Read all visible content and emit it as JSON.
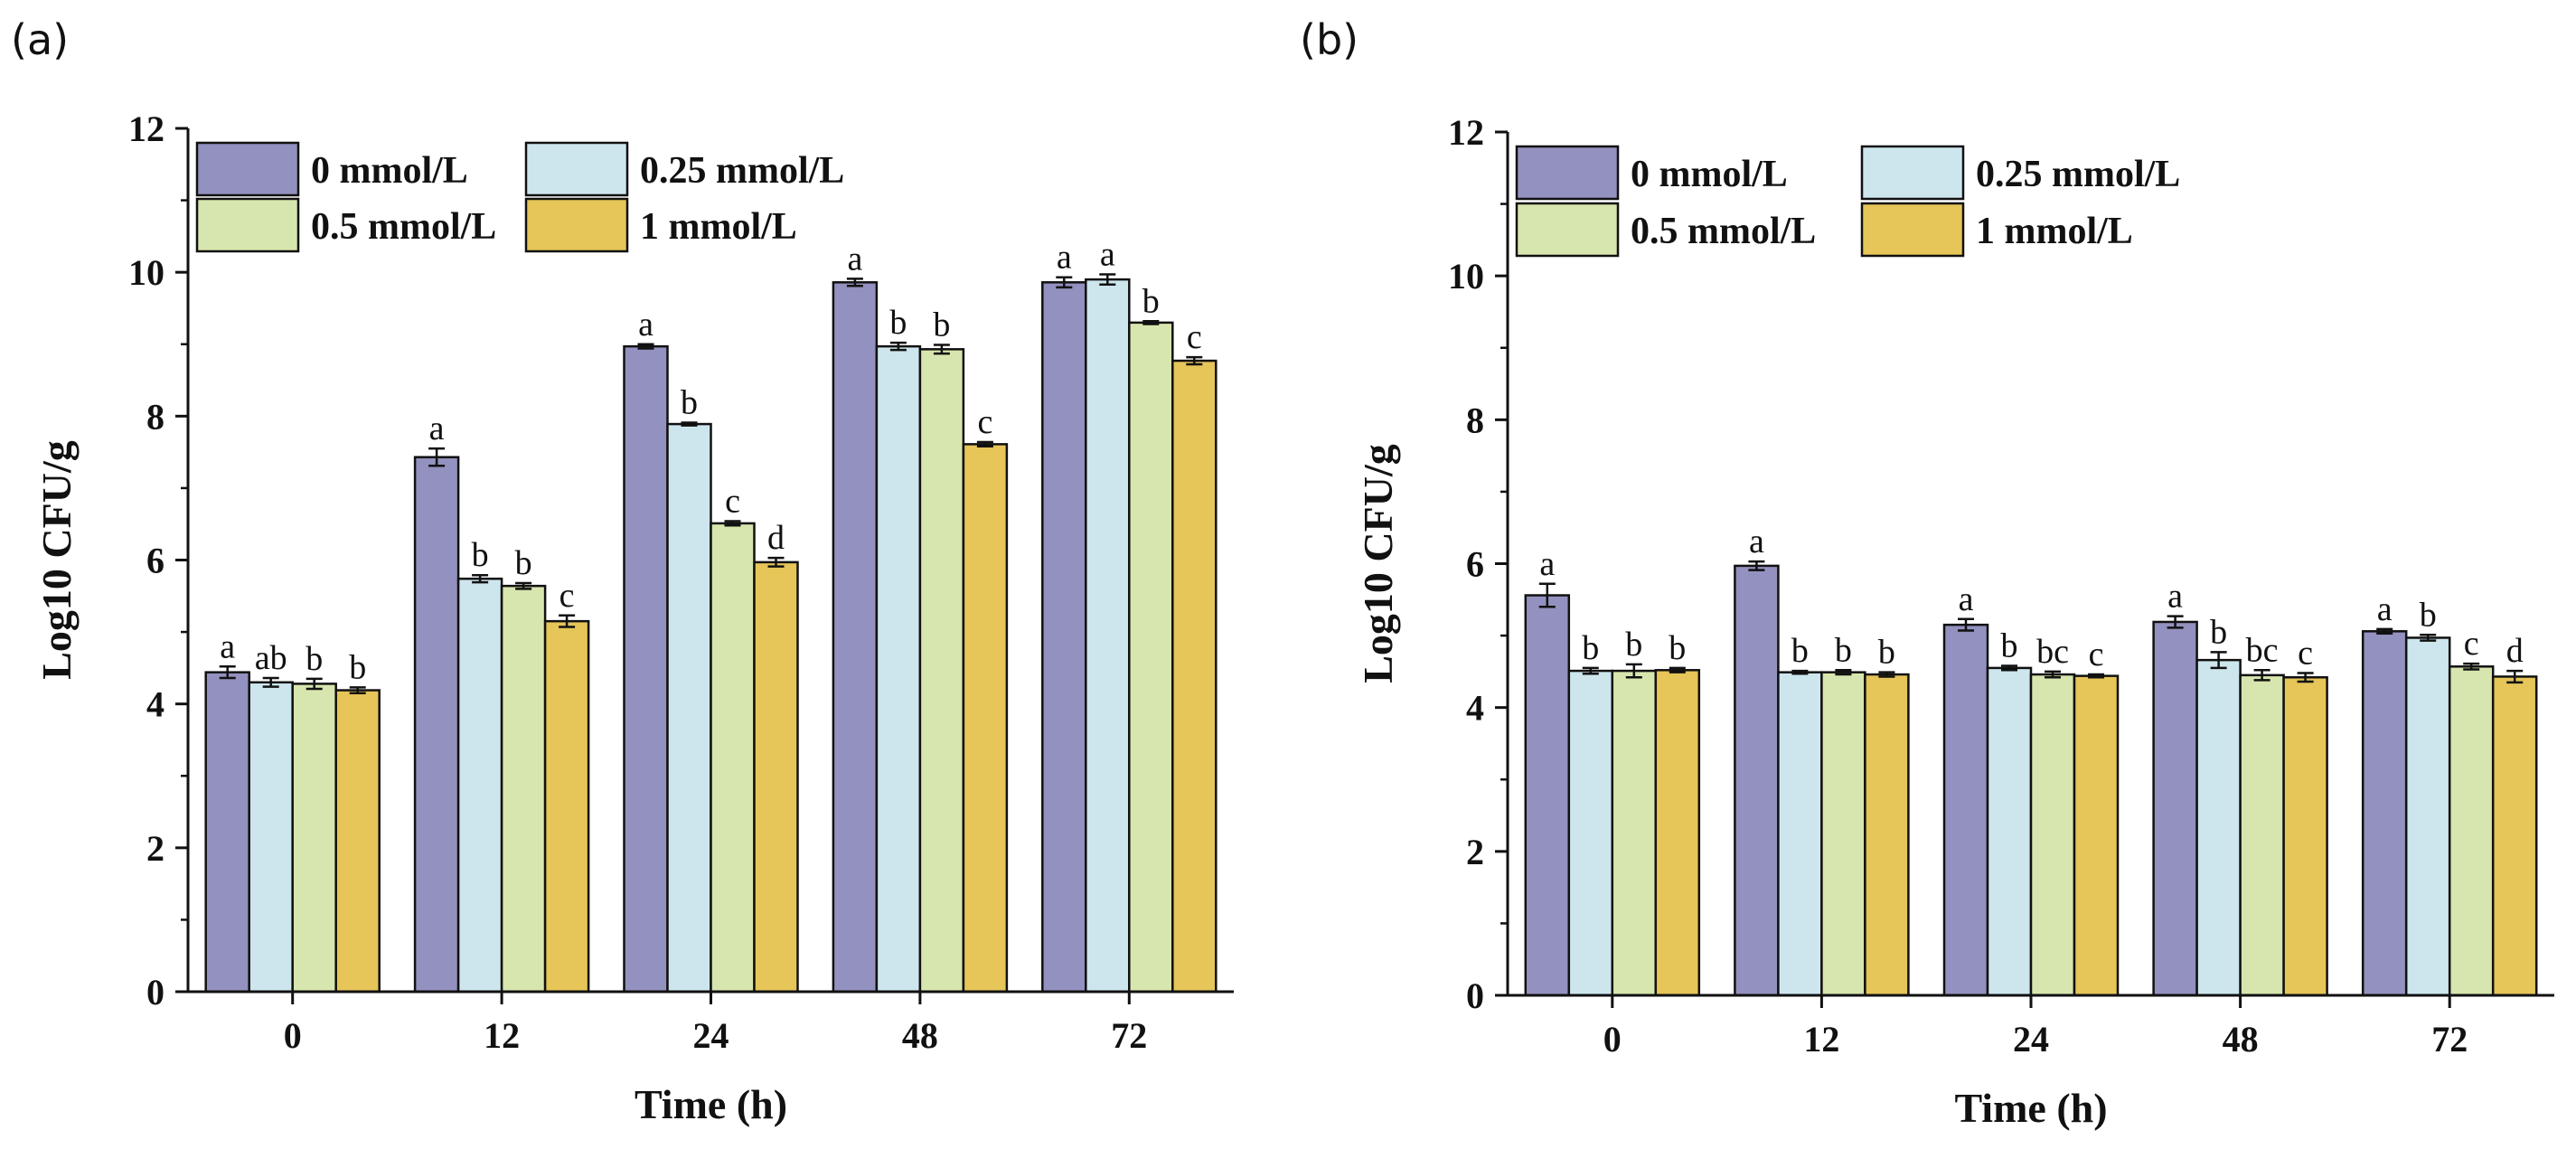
{
  "chart_data": [
    {
      "panel_label": "(a)",
      "type": "bar",
      "title": "",
      "xlabel": "Time (h)",
      "ylabel": "Log10 CFU/g",
      "ylim": [
        0,
        12
      ],
      "yticks": [
        "0",
        "2",
        "4",
        "6",
        "8",
        "10",
        "12"
      ],
      "categories": [
        "0",
        "12",
        "24",
        "48",
        "72"
      ],
      "legend_position": "top-left",
      "series": [
        {
          "name": "0 mmol/L",
          "color": "#9391BF",
          "values": [
            4.44,
            7.43,
            8.97,
            9.86,
            9.86
          ],
          "errors": [
            0.08,
            0.12,
            0.03,
            0.05,
            0.07
          ],
          "letters": [
            "a",
            "a",
            "a",
            "a",
            "a"
          ]
        },
        {
          "name": "0.25 mmol/L",
          "color": "#CDE6EE",
          "values": [
            4.3,
            5.74,
            7.89,
            8.97,
            9.9
          ],
          "errors": [
            0.06,
            0.05,
            0.02,
            0.05,
            0.07
          ],
          "letters": [
            "ab",
            "b",
            "b",
            "b",
            "a"
          ]
        },
        {
          "name": "0.5 mmol/L",
          "color": "#D7E6AE",
          "values": [
            4.28,
            5.64,
            6.51,
            8.93,
            9.3
          ],
          "errors": [
            0.07,
            0.04,
            0.03,
            0.06,
            0.02
          ],
          "letters": [
            "b",
            "b",
            "c",
            "b",
            "b"
          ]
        },
        {
          "name": "1 mmol/L",
          "color": "#E6C559",
          "values": [
            4.19,
            5.15,
            5.97,
            7.61,
            8.77
          ],
          "errors": [
            0.04,
            0.08,
            0.06,
            0.03,
            0.05
          ],
          "letters": [
            "b",
            "c",
            "d",
            "c",
            "c"
          ]
        }
      ]
    },
    {
      "panel_label": "(b)",
      "type": "bar",
      "title": "",
      "xlabel": "Time (h)",
      "ylabel": "Log10 CFU/g",
      "ylim": [
        0,
        12
      ],
      "yticks": [
        "0",
        "2",
        "4",
        "6",
        "8",
        "10",
        "12"
      ],
      "categories": [
        "0",
        "12",
        "24",
        "48",
        "72"
      ],
      "legend_position": "top-left",
      "series": [
        {
          "name": "0 mmol/L",
          "color": "#9391BF",
          "values": [
            5.56,
            5.97,
            5.15,
            5.19,
            5.06
          ],
          "errors": [
            0.16,
            0.06,
            0.08,
            0.08,
            0.03
          ],
          "letters": [
            "a",
            "a",
            "a",
            "a",
            "a"
          ]
        },
        {
          "name": "0.25 mmol/L",
          "color": "#CDE6EE",
          "values": [
            4.51,
            4.49,
            4.55,
            4.66,
            4.97
          ],
          "errors": [
            0.04,
            0.02,
            0.03,
            0.11,
            0.04
          ],
          "letters": [
            "b",
            "b",
            "b",
            "b",
            "b"
          ]
        },
        {
          "name": "0.5 mmol/L",
          "color": "#D7E6AE",
          "values": [
            4.51,
            4.49,
            4.46,
            4.45,
            4.57
          ],
          "errors": [
            0.09,
            0.03,
            0.04,
            0.07,
            0.04
          ],
          "letters": [
            "b",
            "b",
            "bc",
            "bc",
            "c"
          ]
        },
        {
          "name": "1 mmol/L",
          "color": "#E6C559",
          "values": [
            4.52,
            4.46,
            4.44,
            4.42,
            4.43
          ],
          "errors": [
            0.03,
            0.03,
            0.02,
            0.06,
            0.08
          ],
          "letters": [
            "b",
            "b",
            "c",
            "c",
            "d"
          ]
        }
      ]
    }
  ]
}
